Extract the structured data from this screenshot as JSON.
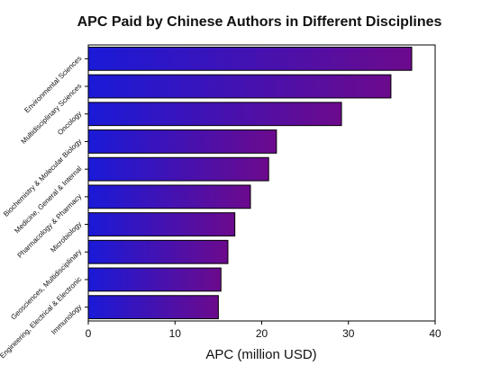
{
  "chart_data": {
    "type": "barh",
    "title": "APC Paid by Chinese Authors in Different Disciplines",
    "xlabel": "APC (million USD)",
    "categories": [
      "Environmental Sciences",
      "Multidisciplinary Sciences",
      "Oncology",
      "Biochemistry & Molecular Biology",
      "Medicine, General & Internal",
      "Pharmacology & Pharmacy",
      "Microbiology",
      "Geosciences, Multidisciplinary",
      "Engineering, Electrical & Electronic",
      "Immunology"
    ],
    "values": [
      37.3,
      34.9,
      29.2,
      21.7,
      20.8,
      18.7,
      16.9,
      16.1,
      15.3,
      15.0
    ],
    "gradient_colors": [
      "#1a1ad8",
      "#6c0a8c"
    ],
    "xlim": [
      0,
      40
    ],
    "xticks": [
      0,
      10,
      20,
      30,
      40
    ]
  }
}
